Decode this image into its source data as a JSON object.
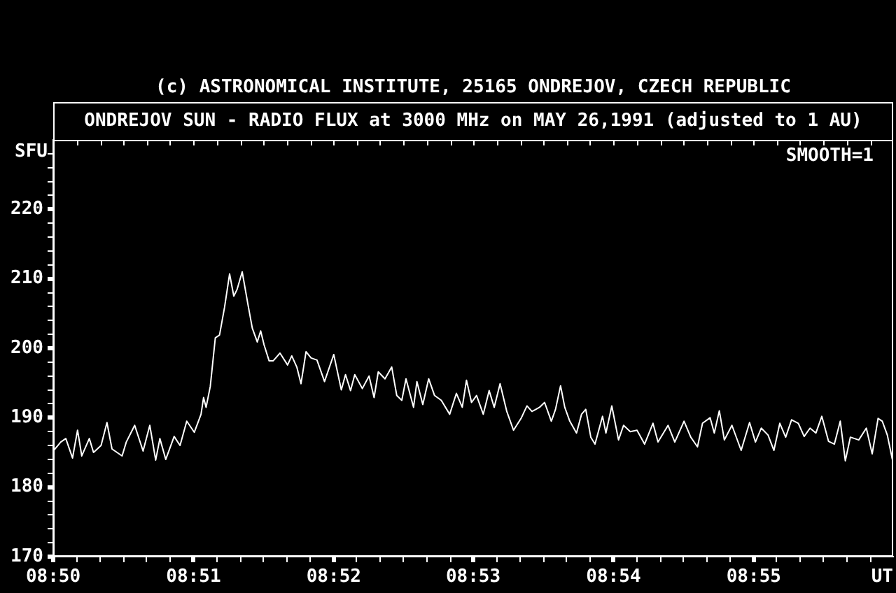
{
  "chart_data": {
    "type": "line",
    "title": "ONDREJOV SUN - RADIO FLUX at 3000 MHz on MAY 26,1991 (adjusted to 1 AU)",
    "xlabel": "UT",
    "ylabel": "SFU",
    "annotations": [
      "(c) ASTRONOMICAL INSTITUTE, 25165 ONDREJOV, CZECH REPUBLIC",
      "SMOOTH=1"
    ],
    "color": "#ffffff",
    "x": [
      8.8333,
      8.8342,
      8.8348,
      8.8356,
      8.8362,
      8.8367,
      8.8376,
      8.8381,
      8.839,
      8.8397,
      8.8403,
      8.8415,
      8.842,
      8.843,
      8.844,
      8.8448,
      8.8455,
      8.846,
      8.8467,
      8.8477,
      8.8484,
      8.8492,
      8.8501,
      8.8509,
      8.8512,
      8.8515,
      8.852,
      8.8526,
      8.8531,
      8.8537,
      8.8543,
      8.8548,
      8.8552,
      8.8558,
      8.8565,
      8.857,
      8.8576,
      8.858,
      8.8584,
      8.859,
      8.8595,
      8.8603,
      8.8612,
      8.8617,
      8.8623,
      8.8628,
      8.8634,
      8.864,
      8.8647,
      8.8656,
      8.8667,
      8.8676,
      8.8681,
      8.8687,
      8.8692,
      8.8701,
      8.8709,
      8.8715,
      8.872,
      8.8728,
      8.8736,
      8.8742,
      8.8748,
      8.8753,
      8.8762,
      8.8766,
      8.8773,
      8.878,
      8.8787,
      8.8795,
      8.8805,
      8.8813,
      8.882,
      8.8825,
      8.8831,
      8.8837,
      8.8845,
      8.8852,
      8.8858,
      8.8865,
      8.8873,
      8.8881,
      8.889,
      8.8897,
      8.8903,
      8.8912,
      8.8918,
      8.8926,
      8.8931,
      8.8937,
      8.8942,
      8.8948,
      8.8956,
      8.8962,
      8.8967,
      8.8973,
      8.8978,
      8.8987,
      8.8991,
      8.8998,
      8.9006,
      8.9012,
      8.902,
      8.9028,
      8.9037,
      8.9047,
      8.9053,
      8.9065,
      8.9073,
      8.9084,
      8.9092,
      8.91,
      8.9106,
      8.9115,
      8.912,
      8.9126,
      8.9132,
      8.9141,
      8.9152,
      8.9162,
      8.9169,
      8.9176,
      8.9184,
      8.9191,
      8.9198,
      8.9205,
      8.9212,
      8.922,
      8.9227,
      8.9234,
      8.9241,
      8.9248,
      8.9256,
      8.9263,
      8.927,
      8.9276,
      8.9282,
      8.9292,
      8.9301,
      8.9308,
      8.9315,
      8.932,
      8.9326,
      8.9332
    ],
    "values": [
      185.2,
      186.5,
      187,
      184.2,
      188.2,
      184.5,
      187,
      185,
      186,
      189.3,
      185.5,
      184.5,
      186.5,
      188.9,
      185.2,
      188.9,
      183.9,
      187,
      184,
      187.3,
      186,
      189.5,
      187.9,
      190.5,
      192.9,
      191.5,
      194.5,
      201.5,
      201.9,
      205.9,
      210.7,
      207.5,
      208.5,
      211,
      206.2,
      202.9,
      200.9,
      202.5,
      200.5,
      198.2,
      198.2,
      199.3,
      197.6,
      198.9,
      197.3,
      194.9,
      199.5,
      198.6,
      198.3,
      195.2,
      199.1,
      194,
      196.2,
      193.9,
      196.2,
      194.2,
      196,
      192.9,
      196.6,
      195.6,
      197.3,
      193.2,
      192.5,
      195.6,
      191.5,
      195.2,
      191.9,
      195.6,
      193.2,
      192.5,
      190.5,
      193.5,
      191.5,
      195.4,
      192.2,
      193.2,
      190.5,
      193.9,
      191.5,
      194.9,
      190.9,
      188.2,
      189.9,
      191.7,
      190.9,
      191.5,
      192.2,
      189.5,
      191.2,
      194.6,
      191.5,
      189.5,
      187.8,
      190.5,
      191.2,
      187.2,
      186.2,
      190.2,
      187.8,
      191.7,
      186.8,
      188.9,
      188,
      188.2,
      186.2,
      189.2,
      186.5,
      188.9,
      186.5,
      189.5,
      187.2,
      185.8,
      189.2,
      190,
      187.8,
      191,
      186.8,
      188.9,
      185.3,
      189.3,
      186.5,
      188.5,
      187.5,
      185.3,
      189.2,
      187.2,
      189.7,
      189.2,
      187.3,
      188.5,
      187.8,
      190.2,
      186.6,
      186.2,
      189.5,
      183.8,
      187.2,
      186.8,
      188.5,
      184.8,
      189.9,
      189.5,
      187.5,
      184
    ],
    "xlim": [
      8.8333,
      8.9333
    ],
    "xticks": [
      {
        "value": 8.8333,
        "label": "08:50"
      },
      {
        "value": 8.8361,
        "label": null
      },
      {
        "value": 8.8389,
        "label": null
      },
      {
        "value": 8.8417,
        "label": null
      },
      {
        "value": 8.8444,
        "label": null
      },
      {
        "value": 8.8472,
        "label": null
      },
      {
        "value": 8.85,
        "label": "08:51"
      },
      {
        "value": 8.8528,
        "label": null
      },
      {
        "value": 8.8556,
        "label": null
      },
      {
        "value": 8.8583,
        "label": null
      },
      {
        "value": 8.8611,
        "label": null
      },
      {
        "value": 8.8639,
        "label": null
      },
      {
        "value": 8.8667,
        "label": "08:52"
      },
      {
        "value": 8.8694,
        "label": null
      },
      {
        "value": 8.8722,
        "label": null
      },
      {
        "value": 8.875,
        "label": null
      },
      {
        "value": 8.8778,
        "label": null
      },
      {
        "value": 8.8806,
        "label": null
      },
      {
        "value": 8.8833,
        "label": "08:53"
      },
      {
        "value": 8.8861,
        "label": null
      },
      {
        "value": 8.8889,
        "label": null
      },
      {
        "value": 8.8917,
        "label": null
      },
      {
        "value": 8.8944,
        "label": null
      },
      {
        "value": 8.8972,
        "label": null
      },
      {
        "value": 8.9,
        "label": "08:54"
      },
      {
        "value": 8.9028,
        "label": null
      },
      {
        "value": 8.9056,
        "label": null
      },
      {
        "value": 8.9083,
        "label": null
      },
      {
        "value": 8.9111,
        "label": null
      },
      {
        "value": 8.9139,
        "label": null
      },
      {
        "value": 8.9167,
        "label": "08:55"
      },
      {
        "value": 8.9194,
        "label": null
      },
      {
        "value": 8.9222,
        "label": null
      },
      {
        "value": 8.925,
        "label": null
      },
      {
        "value": 8.9278,
        "label": null
      },
      {
        "value": 8.9306,
        "label": null
      }
    ],
    "ylim": [
      170,
      230
    ],
    "yticks": [
      170,
      {
        "value": 172,
        "label": null
      },
      {
        "value": 174,
        "label": null
      },
      {
        "value": 176,
        "label": null
      },
      {
        "value": 178,
        "label": null
      },
      180,
      {
        "value": 182,
        "label": null
      },
      {
        "value": 184,
        "label": null
      },
      {
        "value": 186,
        "label": null
      },
      {
        "value": 188,
        "label": null
      },
      190,
      {
        "value": 192,
        "label": null
      },
      {
        "value": 194,
        "label": null
      },
      {
        "value": 196,
        "label": null
      },
      {
        "value": 198,
        "label": null
      },
      200,
      {
        "value": 202,
        "label": null
      },
      {
        "value": 204,
        "label": null
      },
      {
        "value": 206,
        "label": null
      },
      {
        "value": 208,
        "label": null
      },
      210,
      {
        "value": 212,
        "label": null
      },
      {
        "value": 214,
        "label": null
      },
      {
        "value": 216,
        "label": null
      },
      {
        "value": 218,
        "label": null
      },
      220,
      {
        "value": 222,
        "label": null
      },
      {
        "value": 224,
        "label": null
      },
      {
        "value": 226,
        "label": null
      },
      {
        "value": 228,
        "label": null
      }
    ]
  }
}
